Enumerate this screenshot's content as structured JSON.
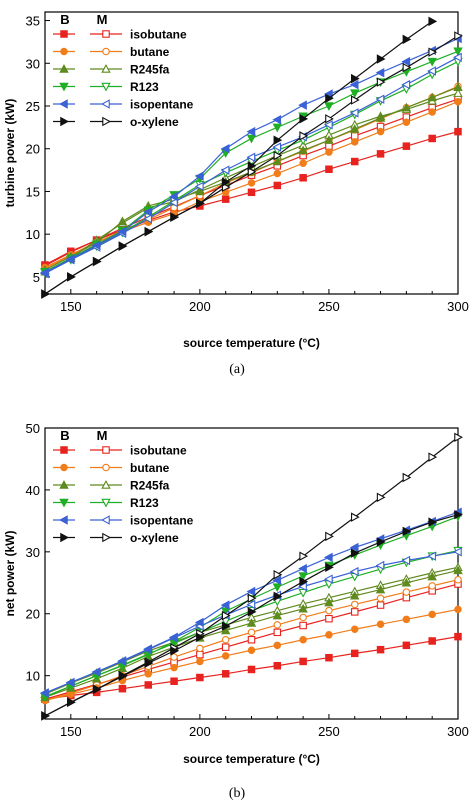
{
  "legend_headers": [
    "B",
    "M"
  ],
  "chart_data": [
    {
      "type": "line",
      "caption": "(a)",
      "xlabel": "source temperature (°C)",
      "ylabel": "turbine power (kW)",
      "xlim": [
        140,
        300
      ],
      "ylim": [
        3,
        36
      ],
      "xticks": [
        150,
        200,
        250,
        300
      ],
      "yticks": [
        5,
        10,
        15,
        20,
        25,
        30,
        35
      ],
      "legend_position": "top-left",
      "x": [
        140,
        150,
        160,
        170,
        180,
        190,
        200,
        210,
        220,
        230,
        240,
        250,
        260,
        270,
        280,
        290,
        300
      ],
      "series": [
        {
          "name": "isobutane",
          "color": "#e8231f",
          "basic": [
            6.4,
            8.0,
            9.3,
            10.5,
            11.6,
            12.6,
            13.3,
            14.1,
            14.9,
            15.7,
            16.6,
            17.6,
            18.5,
            19.4,
            20.3,
            21.2,
            22.0
          ],
          "modified": [
            6.3,
            7.9,
            9.3,
            10.7,
            12.0,
            13.2,
            14.5,
            15.7,
            16.9,
            18.0,
            19.2,
            20.3,
            21.5,
            22.6,
            23.7,
            24.8,
            25.8
          ]
        },
        {
          "name": "butane",
          "color": "#f07d1a",
          "basic": [
            6.1,
            7.6,
            9.1,
            10.3,
            11.4,
            12.4,
            13.8,
            14.9,
            16.0,
            17.1,
            18.3,
            19.6,
            20.8,
            22.0,
            23.1,
            24.3,
            25.5
          ],
          "modified": [
            6.0,
            7.5,
            9.0,
            10.4,
            11.7,
            13.1,
            14.5,
            16.0,
            17.2,
            18.5,
            19.7,
            21.0,
            22.2,
            23.5,
            24.8,
            26.0,
            27.3
          ]
        },
        {
          "name": "R245fa",
          "color": "#5f8a1e",
          "basic": [
            5.8,
            7.4,
            9.0,
            11.5,
            13.3,
            14.1,
            15.0,
            16.1,
            17.3,
            18.5,
            19.8,
            21.0,
            22.3,
            23.6,
            24.8,
            26.0,
            27.2
          ],
          "modified": [
            5.6,
            7.2,
            9.3,
            11.3,
            13.1,
            13.8,
            15.2,
            16.6,
            17.9,
            19.2,
            20.4,
            21.6,
            22.8,
            23.8,
            24.6,
            25.6,
            26.5
          ]
        },
        {
          "name": "R123",
          "color": "#1fae24",
          "basic": [
            5.6,
            7.2,
            8.8,
            10.4,
            12.8,
            14.6,
            16.5,
            19.5,
            21.2,
            22.5,
            23.8,
            25.0,
            26.5,
            27.8,
            29.0,
            30.2,
            31.4
          ],
          "modified": [
            5.5,
            7.0,
            8.6,
            10.2,
            12.0,
            13.9,
            15.8,
            17.2,
            18.5,
            19.8,
            21.0,
            22.5,
            24.0,
            25.6,
            27.0,
            28.7,
            30.2
          ]
        },
        {
          "name": "isopentane",
          "color": "#3a62d6",
          "basic": [
            5.5,
            7.1,
            8.7,
            10.3,
            12.6,
            14.4,
            16.8,
            20.0,
            22.0,
            23.4,
            25.1,
            26.4,
            27.5,
            28.9,
            30.2,
            31.5,
            32.9
          ],
          "modified": [
            5.4,
            7.0,
            8.5,
            10.1,
            11.8,
            13.7,
            15.6,
            17.5,
            19.0,
            20.2,
            21.4,
            22.8,
            24.2,
            25.8,
            27.5,
            29.1,
            30.7
          ]
        },
        {
          "name": "o-xylene",
          "color": "#111111",
          "basic": [
            3.0,
            5.0,
            6.8,
            8.6,
            10.3,
            12.0,
            13.6,
            16.1,
            18.0,
            21.0,
            23.5,
            25.9,
            28.2,
            30.5,
            32.8,
            34.9,
            null
          ],
          "modified": [
            3.0,
            5.0,
            6.8,
            8.6,
            10.3,
            12.0,
            13.6,
            15.5,
            17.3,
            19.2,
            21.5,
            23.5,
            25.7,
            27.8,
            29.5,
            31.3,
            33.2
          ]
        }
      ]
    },
    {
      "type": "line",
      "caption": "(b)",
      "xlabel": "source temperature (°C)",
      "ylabel": "net power (kW)",
      "xlim": [
        140,
        300
      ],
      "ylim": [
        3,
        50
      ],
      "xticks": [
        150,
        200,
        250,
        300
      ],
      "yticks": [
        10,
        20,
        30,
        40,
        50
      ],
      "legend_position": "top-left",
      "x": [
        140,
        150,
        160,
        170,
        180,
        190,
        200,
        210,
        220,
        230,
        240,
        250,
        260,
        270,
        280,
        290,
        300
      ],
      "series": [
        {
          "name": "isobutane",
          "color": "#e8231f",
          "basic": [
            6.2,
            6.8,
            7.3,
            7.9,
            8.5,
            9.1,
            9.7,
            10.3,
            11.0,
            11.6,
            12.3,
            12.9,
            13.6,
            14.2,
            14.9,
            15.6,
            16.3
          ],
          "modified": [
            6.2,
            7.4,
            8.6,
            9.8,
            11.0,
            12.2,
            13.4,
            14.6,
            15.8,
            17.0,
            18.1,
            19.2,
            20.3,
            21.4,
            22.6,
            23.7,
            24.8
          ]
        },
        {
          "name": "butane",
          "color": "#f07d1a",
          "basic": [
            6.0,
            7.0,
            8.0,
            9.2,
            10.3,
            11.3,
            12.3,
            13.2,
            14.1,
            14.9,
            15.8,
            16.6,
            17.5,
            18.3,
            19.1,
            19.9,
            20.7
          ],
          "modified": [
            6.0,
            7.2,
            8.5,
            10.0,
            11.5,
            13.0,
            14.4,
            15.8,
            17.0,
            18.2,
            19.4,
            20.5,
            21.5,
            22.5,
            23.5,
            24.5,
            25.5
          ]
        },
        {
          "name": "R245fa",
          "color": "#5f8a1e",
          "basic": [
            6.5,
            8.0,
            9.5,
            11.2,
            13.1,
            14.6,
            16.1,
            17.3,
            18.5,
            19.7,
            20.8,
            21.8,
            22.9,
            23.9,
            25.0,
            26.0,
            27.0
          ],
          "modified": [
            7.0,
            8.8,
            10.4,
            12.2,
            14.0,
            15.4,
            17.0,
            18.2,
            19.4,
            20.5,
            21.6,
            22.6,
            23.6,
            24.6,
            25.6,
            26.6,
            27.5
          ]
        },
        {
          "name": "R123",
          "color": "#1fae24",
          "basic": [
            6.6,
            8.3,
            10.0,
            11.6,
            13.4,
            15.5,
            17.8,
            20.4,
            22.4,
            24.3,
            26.1,
            27.8,
            29.5,
            31.1,
            32.6,
            34.1,
            35.7
          ],
          "modified": [
            6.6,
            8.3,
            10.0,
            11.7,
            13.5,
            15.2,
            17.0,
            18.8,
            20.5,
            22.0,
            23.4,
            24.8,
            26.0,
            27.2,
            28.3,
            29.3,
            30.2
          ]
        },
        {
          "name": "isopentane",
          "color": "#3a62d6",
          "basic": [
            7.2,
            8.9,
            10.6,
            12.4,
            14.3,
            16.2,
            18.6,
            21.4,
            23.6,
            25.4,
            27.3,
            29.1,
            30.7,
            32.1,
            33.5,
            34.9,
            36.4
          ],
          "modified": [
            7.2,
            8.9,
            10.6,
            12.3,
            14.2,
            16.1,
            18.0,
            19.8,
            21.5,
            23.0,
            24.4,
            25.6,
            26.8,
            27.8,
            28.6,
            29.3,
            30.0
          ]
        },
        {
          "name": "o-xylene",
          "color": "#111111",
          "basic": [
            3.5,
            5.7,
            7.8,
            9.9,
            12.0,
            14.0,
            16.2,
            18.0,
            20.3,
            22.8,
            25.2,
            27.5,
            29.8,
            31.6,
            33.3,
            34.8,
            36.0
          ],
          "modified": [
            3.5,
            5.7,
            7.8,
            10.0,
            12.2,
            14.5,
            16.8,
            19.7,
            22.5,
            26.3,
            29.3,
            32.5,
            35.6,
            38.8,
            42.0,
            45.3,
            48.5
          ]
        }
      ]
    }
  ]
}
